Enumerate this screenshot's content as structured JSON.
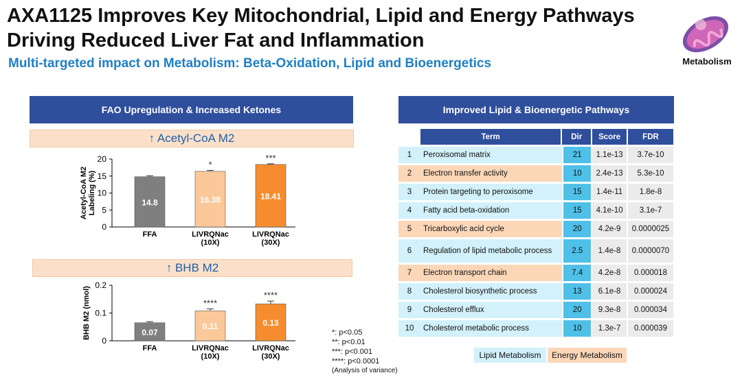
{
  "header": {
    "title_line1": "AXA1125 Improves Key Mitochondrial, Lipid and Energy Pathways",
    "title_line2": "Driving Reduced Liver Fat and Inflammation",
    "subtitle": "Multi-targeted impact on Metabolism: Beta-Oxidation, Lipid and Bioenergetics",
    "logo_label": "Metabolism"
  },
  "left_panel": {
    "banner": "FAO Upregulation & Increased Ketones"
  },
  "right_panel": {
    "banner": "Improved Lipid & Bioenergetic Pathways",
    "columns": [
      "Term",
      "Dir",
      "Score",
      "FDR"
    ],
    "rows": [
      {
        "n": "1",
        "term": "Peroxisomal matrix",
        "dir": "21",
        "score": "1.1e-13",
        "fdr": "3.7e-10",
        "cat": "lipid"
      },
      {
        "n": "2",
        "term": "Electron transfer activity",
        "dir": "10",
        "score": "2.4e-13",
        "fdr": "5.3e-10",
        "cat": "energy"
      },
      {
        "n": "3",
        "term": "Protein targeting to peroxisome",
        "dir": "15",
        "score": "1.4e-11",
        "fdr": "1.8e-8",
        "cat": "lipid"
      },
      {
        "n": "4",
        "term": "Fatty acid beta-oxidation",
        "dir": "15",
        "score": "4.1e-10",
        "fdr": "3.1e-7",
        "cat": "lipid"
      },
      {
        "n": "5",
        "term": "Tricarboxylic acid cycle",
        "dir": "20",
        "score": "4.2e-9",
        "fdr": "0.0000025",
        "cat": "energy"
      },
      {
        "n": "6",
        "term": "Regulation of lipid metabolic process",
        "dir": "2.5",
        "score": "1.4e-8",
        "fdr": "0.0000070",
        "cat": "lipid"
      },
      {
        "n": "7",
        "term": "Electron transport chain",
        "dir": "7.4",
        "score": "4.2e-8",
        "fdr": "0.000018",
        "cat": "energy"
      },
      {
        "n": "8",
        "term": "Cholesterol biosynthetic process",
        "dir": "13",
        "score": "6.1e-8",
        "fdr": "0.000024",
        "cat": "lipid"
      },
      {
        "n": "9",
        "term": "Cholesterol efflux",
        "dir": "20",
        "score": "9.3e-8",
        "fdr": "0.000034",
        "cat": "lipid"
      },
      {
        "n": "10",
        "term": "Cholesterol metabolic process",
        "dir": "10",
        "score": "1.3e-7",
        "fdr": "0.000039",
        "cat": "lipid"
      }
    ],
    "legend": {
      "lipid": "Lipid Metabolism",
      "energy": "Energy Metabolism"
    }
  },
  "significance": [
    "*: p<0.05",
    "**: p<0.01",
    "***: p<0.001",
    "****: p<0.0001",
    "(Analysis of variance)"
  ],
  "colors": {
    "ffa": "#7f7f7f",
    "x10": "#fbc89a",
    "x30": "#f68c2e",
    "banner": "#2f4e9c",
    "subtitle": "#1f7fc4"
  },
  "chart_data": [
    {
      "type": "bar",
      "title": "↑ Acetyl-CoA M2",
      "ylabel": "Acetyl-CoA M2 Labeling (%)",
      "xlabel": "",
      "categories": [
        [
          "FFA"
        ],
        [
          "LIVRQNac",
          "(10X)"
        ],
        [
          "LIVRQNac",
          "(30X)"
        ]
      ],
      "values": [
        14.8,
        16.38,
        18.41
      ],
      "value_labels": [
        "14.8",
        "16.38",
        "18.41"
      ],
      "errors": [
        0.3,
        0.3,
        0.2
      ],
      "significance": [
        "",
        "*",
        "***"
      ],
      "ylim": [
        0,
        20
      ],
      "yticks": [
        0,
        5,
        10,
        15,
        20
      ],
      "ytick_labels": [
        "0",
        "5",
        "10",
        "15",
        "20"
      ]
    },
    {
      "type": "bar",
      "title": "↑ BHB M2",
      "ylabel": "BHB M2 (nmol)",
      "xlabel": "",
      "categories": [
        [
          "FFA"
        ],
        [
          "LIVRQNac",
          "(10X)"
        ],
        [
          "LIVRQNac",
          "(30X)"
        ]
      ],
      "values": [
        0.065,
        0.108,
        0.133
      ],
      "value_labels": [
        "0.07",
        "0.11",
        "0.13"
      ],
      "errors": [
        0.004,
        0.007,
        0.01
      ],
      "significance": [
        "",
        "****",
        "****"
      ],
      "ylim": [
        0,
        0.2
      ],
      "yticks": [
        0,
        0.1,
        0.2
      ],
      "ytick_labels": [
        "0",
        "0.1",
        "0.2"
      ]
    }
  ]
}
